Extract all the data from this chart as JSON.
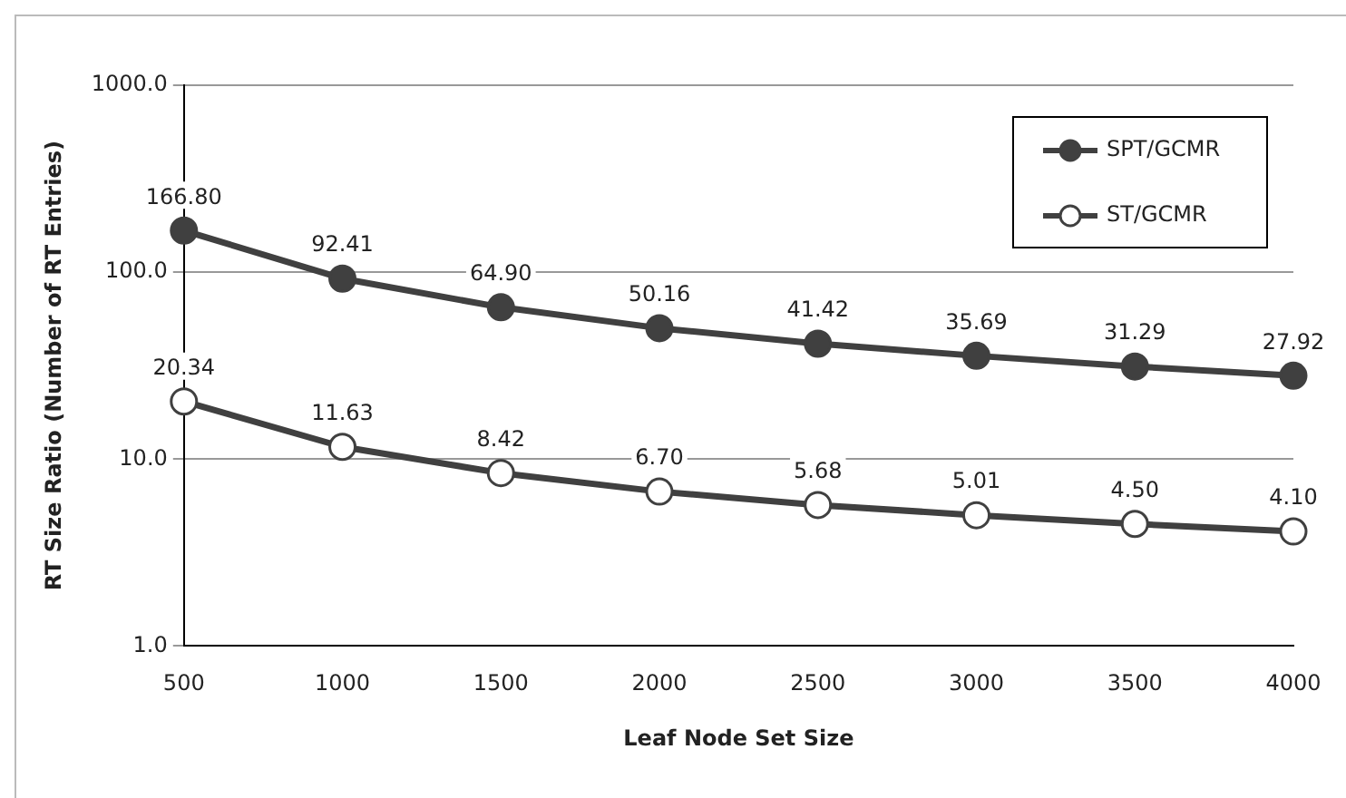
{
  "chart_data": {
    "type": "line",
    "xlabel": "Leaf Node Set Size",
    "ylabel": "RT Size Ratio (Number of RT Entries)",
    "categories": [
      "500",
      "1000",
      "1500",
      "2000",
      "2500",
      "3000",
      "3500",
      "4000"
    ],
    "color": "#404040",
    "series": [
      {
        "name": "SPT/GCMR",
        "color": "#404040",
        "values": [
          166.8,
          92.41,
          64.9,
          50.16,
          41.42,
          35.69,
          31.29,
          27.92
        ],
        "value_labels": [
          "166.80",
          "92.41",
          "64.90",
          "50.16",
          "41.42",
          "35.69",
          "31.29",
          "27.92"
        ]
      },
      {
        "name": "ST/GCMR",
        "color": "#ffffff",
        "values": [
          20.34,
          11.63,
          8.42,
          6.7,
          5.68,
          5.01,
          4.5,
          4.1
        ],
        "value_labels": [
          "20.34",
          "11.63",
          "8.42",
          "6.70",
          "5.68",
          "5.01",
          "4.50",
          "4.10"
        ]
      }
    ],
    "log": "y",
    "ylim": [
      1,
      1000
    ],
    "yticks": [
      {
        "value": 1,
        "label": "1.0"
      },
      {
        "value": 10,
        "label": "10.0"
      },
      {
        "value": 100,
        "label": "100.0"
      },
      {
        "value": 1000,
        "label": "1000.0"
      }
    ],
    "grid": "y",
    "legend": "top right",
    "marker": "circle",
    "line_style": "solid"
  }
}
